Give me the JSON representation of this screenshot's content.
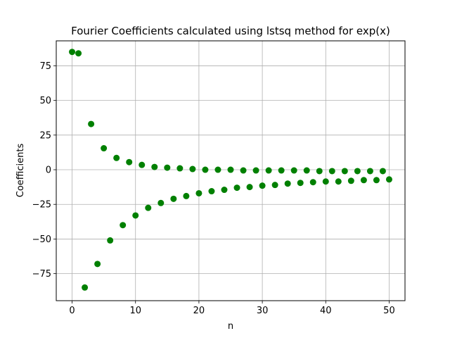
{
  "chart_data": {
    "type": "scatter",
    "title": "Fourier Coefficients calculated using lstsq method for exp(x)",
    "xlabel": "n",
    "ylabel": "Coefficients",
    "xlim": [
      -2.5,
      52.5
    ],
    "ylim": [
      -94.5,
      93
    ],
    "xticks": [
      0,
      10,
      20,
      30,
      40,
      50
    ],
    "xtick_labels": [
      "0",
      "10",
      "20",
      "30",
      "40",
      "50"
    ],
    "yticks": [
      -75,
      -50,
      -25,
      0,
      25,
      50,
      75
    ],
    "ytick_labels": [
      "−75",
      "−50",
      "−25",
      "0",
      "25",
      "50",
      "75"
    ],
    "grid": true,
    "marker_color": "#008000",
    "points": [
      [
        0,
        85
      ],
      [
        1,
        84
      ],
      [
        2,
        -85
      ],
      [
        3,
        33
      ],
      [
        4,
        -68
      ],
      [
        5,
        15.5
      ],
      [
        6,
        -51
      ],
      [
        7,
        8.5
      ],
      [
        8,
        -40
      ],
      [
        9,
        5.5
      ],
      [
        10,
        -33
      ],
      [
        11,
        3.5
      ],
      [
        12,
        -27.5
      ],
      [
        13,
        2
      ],
      [
        14,
        -24
      ],
      [
        15,
        1.5
      ],
      [
        16,
        -21
      ],
      [
        17,
        1
      ],
      [
        18,
        -19
      ],
      [
        19,
        0.5
      ],
      [
        20,
        -17
      ],
      [
        21,
        0
      ],
      [
        22,
        -15.5
      ],
      [
        23,
        0
      ],
      [
        24,
        -14.5
      ],
      [
        25,
        0
      ],
      [
        26,
        -13
      ],
      [
        27,
        -0.5
      ],
      [
        28,
        -12.5
      ],
      [
        29,
        -0.5
      ],
      [
        30,
        -11.5
      ],
      [
        31,
        -0.5
      ],
      [
        32,
        -11
      ],
      [
        33,
        -0.5
      ],
      [
        34,
        -10
      ],
      [
        35,
        -0.5
      ],
      [
        36,
        -9.5
      ],
      [
        37,
        -0.5
      ],
      [
        38,
        -9
      ],
      [
        39,
        -1
      ],
      [
        40,
        -8.5
      ],
      [
        41,
        -1
      ],
      [
        42,
        -8.5
      ],
      [
        43,
        -1
      ],
      [
        44,
        -8
      ],
      [
        45,
        -1
      ],
      [
        46,
        -7.5
      ],
      [
        47,
        -1
      ],
      [
        48,
        -7.5
      ],
      [
        49,
        -1
      ],
      [
        50,
        -7
      ]
    ]
  }
}
